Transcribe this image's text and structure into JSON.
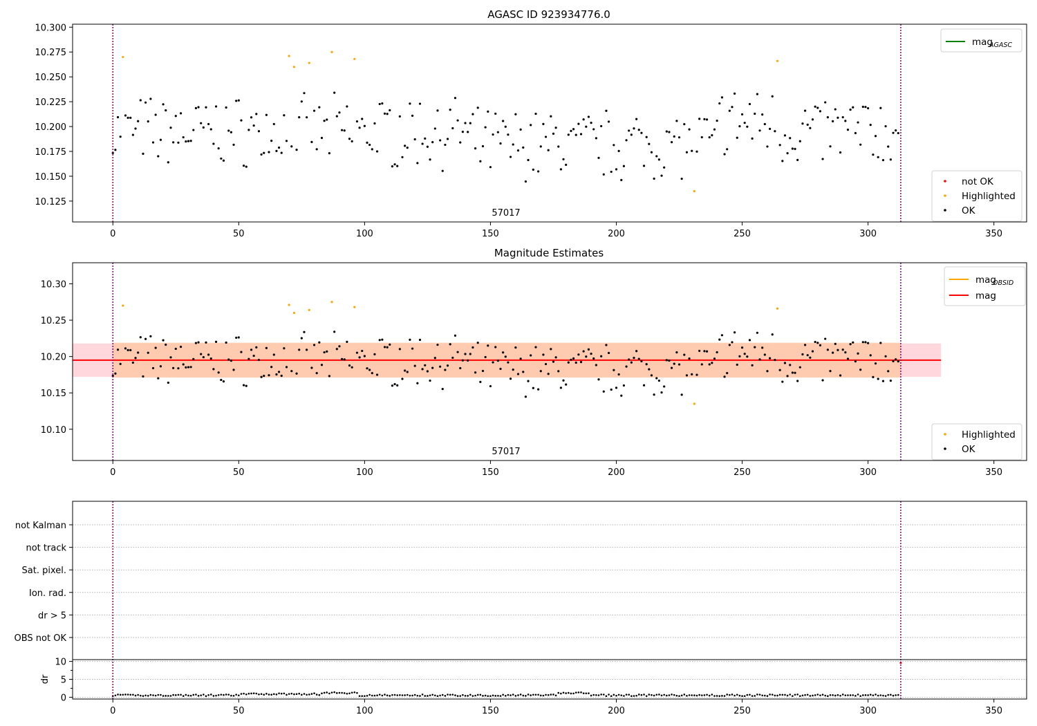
{
  "colors": {
    "ok": "#000000",
    "highlighted": "#ffa500",
    "not_ok": "#ff0000",
    "mag_line": "#ff0000",
    "mag_obsid": "#ffa500",
    "mag_agasc": "#008000",
    "obs_boundary": "#800080",
    "band_mag": "#ffd7dc",
    "band_obsid": "#ffc9a8"
  },
  "chart_data": [
    {
      "type": "scatter",
      "title": "AGASC ID 923934776.0",
      "xlim": [
        -16,
        363
      ],
      "ylim": [
        10.104,
        10.303
      ],
      "xticks": [
        0,
        50,
        100,
        150,
        200,
        250,
        300,
        350
      ],
      "yticks": [
        "10.125",
        "10.150",
        "10.175",
        "10.200",
        "10.225",
        "10.250",
        "10.275",
        "10.300"
      ],
      "obs_label": "57017",
      "obs_boundaries": [
        0,
        313
      ],
      "legend_lines": [
        {
          "name": "mag",
          "sub": "AGASC",
          "color": "#008000"
        }
      ],
      "legend_markers": [
        {
          "name": "not OK",
          "color": "#ff0000"
        },
        {
          "name": "Highlighted",
          "color": "#ffa500"
        },
        {
          "name": "OK",
          "color": "#000000"
        }
      ],
      "highlighted": [
        [
          4,
          10.27
        ],
        [
          70,
          10.271
        ],
        [
          72,
          10.26
        ],
        [
          78,
          10.264
        ],
        [
          87,
          10.275
        ],
        [
          96,
          10.268
        ],
        [
          231,
          10.135
        ],
        [
          264,
          10.266
        ]
      ]
    },
    {
      "type": "scatter",
      "title": "Magnitude Estimates",
      "xlim": [
        -16,
        363
      ],
      "ylim": [
        10.057,
        10.329
      ],
      "xticks": [
        0,
        50,
        100,
        150,
        200,
        250,
        300,
        350
      ],
      "yticks": [
        "10.10",
        "10.15",
        "10.20",
        "10.25",
        "10.30"
      ],
      "obs_label": "57017",
      "obs_boundaries": [
        0,
        313
      ],
      "mag": 10.195,
      "band_mag": [
        -16,
        329,
        10.172,
        10.218
      ],
      "band_obsid": [
        0,
        313,
        10.171,
        10.219
      ],
      "legend_lines": [
        {
          "name": "mag",
          "sub": "OBSID",
          "color": "#ffa500"
        },
        {
          "name": "mag",
          "sub": "",
          "color": "#ff0000"
        }
      ],
      "legend_markers": [
        {
          "name": "Highlighted",
          "color": "#ffa500"
        },
        {
          "name": "OK",
          "color": "#000000"
        }
      ],
      "highlighted": [
        [
          4,
          10.27
        ],
        [
          70,
          10.271
        ],
        [
          72,
          10.26
        ],
        [
          78,
          10.264
        ],
        [
          87,
          10.275
        ],
        [
          96,
          10.268
        ],
        [
          231,
          10.135
        ],
        [
          264,
          10.266
        ]
      ]
    },
    {
      "type": "scatter",
      "title": "",
      "flags": [
        "not Kalman",
        "not track",
        "Sat. pixel.",
        "Ion. rad.",
        "dr > 5",
        "OBS not OK"
      ],
      "dr": {
        "ylabel": "dr",
        "yticks": [
          "0",
          "5",
          "10"
        ],
        "ylim": [
          -0.5,
          10.5
        ]
      }
    }
  ]
}
